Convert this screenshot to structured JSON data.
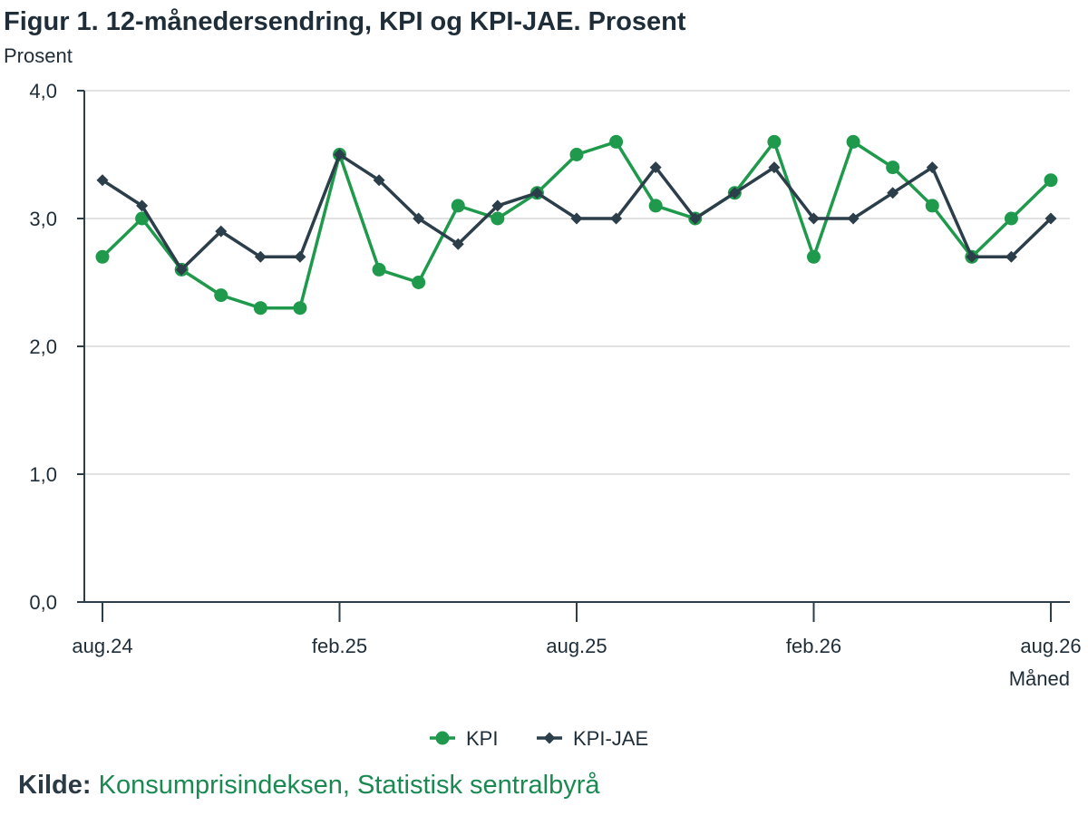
{
  "title": "Figur 1. 12-månedersendring, KPI og KPI-JAE. Prosent",
  "source": {
    "label": "Kilde:",
    "text": "Konsumprisindeksen, Statistisk sentralbyrå"
  },
  "colors": {
    "kpi": "#1f9a4c",
    "kpi_jae": "#2b3e4a",
    "grid": "#d9d9d9",
    "axis": "#2b3e4a"
  },
  "chart_data": {
    "type": "line",
    "ylabel": "Prosent",
    "xlabel": "Måned",
    "ylim": [
      0,
      4
    ],
    "yticks": [
      "0,0",
      "1,0",
      "2,0",
      "3,0",
      "4,0"
    ],
    "x": [
      "aug.24",
      "sep.24",
      "okt.24",
      "nov.24",
      "des.24",
      "jan.25",
      "feb.25",
      "mar.25",
      "apr.25",
      "mai.25",
      "jun.25",
      "jul.25",
      "aug.25",
      "sep.25",
      "okt.25",
      "nov.25",
      "des.25",
      "jan.26",
      "feb.26",
      "mar.26",
      "apr.26",
      "mai.26",
      "jun.26",
      "jul.26",
      "aug.26"
    ],
    "xtick_labels": [
      {
        "index": 0,
        "label": "aug.24"
      },
      {
        "index": 6,
        "label": "feb.25"
      },
      {
        "index": 12,
        "label": "aug.25"
      },
      {
        "index": 18,
        "label": "feb.26"
      },
      {
        "index": 24,
        "label": "aug.26"
      }
    ],
    "grid": true,
    "legend": "bottom-center",
    "series": [
      {
        "name": "KPI",
        "marker": "circle",
        "values": [
          2.7,
          3.0,
          2.6,
          2.4,
          2.3,
          2.3,
          3.5,
          2.6,
          2.5,
          3.1,
          3.0,
          3.2,
          3.5,
          3.6,
          3.1,
          3.0,
          3.2,
          3.6,
          2.7,
          3.6,
          3.4,
          3.1,
          2.7,
          3.0,
          3.3
        ]
      },
      {
        "name": "KPI-JAE",
        "marker": "diamond",
        "values": [
          3.3,
          3.1,
          2.6,
          2.9,
          2.7,
          2.7,
          3.5,
          3.3,
          3.0,
          2.8,
          3.1,
          3.2,
          3.0,
          3.0,
          3.4,
          3.0,
          3.2,
          3.4,
          3.0,
          3.0,
          3.2,
          3.4,
          2.7,
          2.7,
          3.0
        ]
      }
    ]
  }
}
